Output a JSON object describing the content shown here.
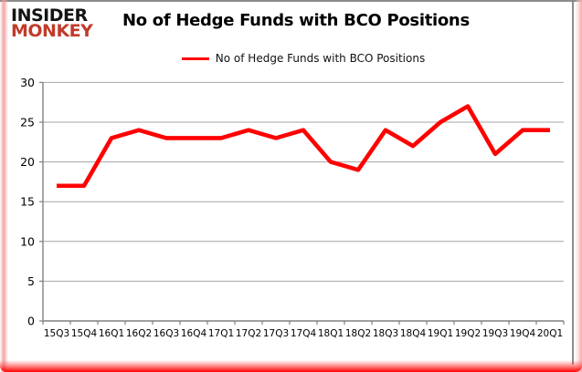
{
  "logo": {
    "top": "INSIDER",
    "bottom": "MONKEY"
  },
  "title": "No of Hedge Funds with BCO Positions",
  "legend": {
    "label": "No of Hedge Funds with BCO Positions"
  },
  "chart_data": {
    "type": "line",
    "title": "No of Hedge Funds with BCO Positions",
    "categories": [
      "15Q3",
      "15Q4",
      "16Q1",
      "16Q2",
      "16Q3",
      "16Q4",
      "17Q1",
      "17Q2",
      "17Q3",
      "17Q4",
      "18Q1",
      "18Q2",
      "18Q3",
      "18Q4",
      "19Q1",
      "19Q2",
      "19Q3",
      "19Q4",
      "20Q1"
    ],
    "series": [
      {
        "name": "No of Hedge Funds with BCO Positions",
        "color": "#ff0000",
        "values": [
          17,
          17,
          23,
          24,
          23,
          23,
          23,
          24,
          23,
          24,
          20,
          19,
          24,
          22,
          25,
          27,
          21,
          24,
          24
        ]
      }
    ],
    "ylim": [
      0,
      30
    ],
    "yticks": [
      0,
      5,
      10,
      15,
      20,
      25,
      30
    ],
    "grid": true,
    "legend_position": "top-center",
    "xlabel": "",
    "ylabel": ""
  },
  "colors": {
    "line": "#ff0000",
    "logo_red": "#c13b2a",
    "grid": "#a6a6a6",
    "axis": "#808080",
    "text": "#000000",
    "frame": "#8c8c8c"
  }
}
